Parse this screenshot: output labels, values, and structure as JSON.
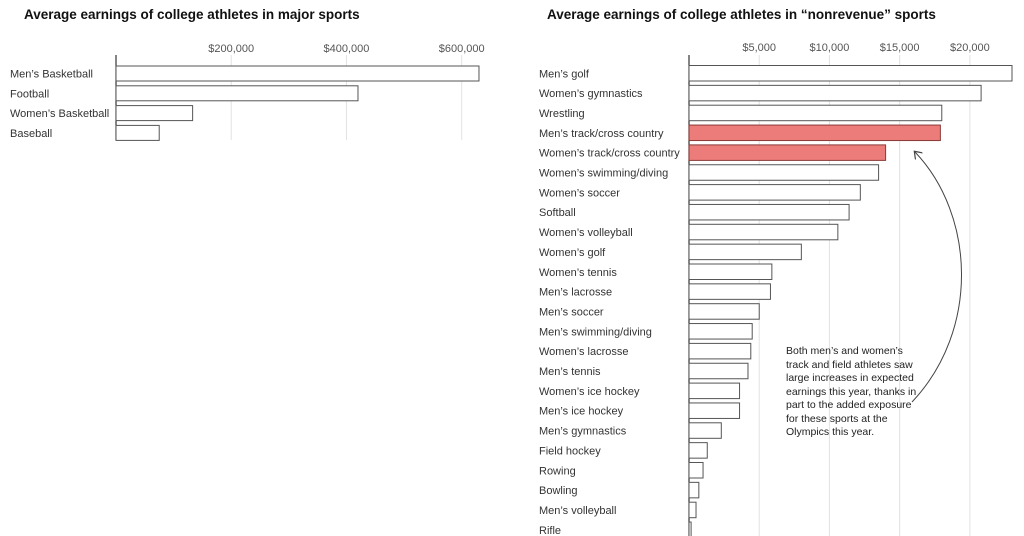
{
  "chart_data": [
    {
      "type": "bar",
      "orientation": "horizontal",
      "title": "Average earnings of college athletes in major sports",
      "categories": [
        "Men’s Basketball",
        "Football",
        "Women’s Basketball",
        "Baseball"
      ],
      "values": [
        630000,
        420000,
        133000,
        75000
      ],
      "xlim": [
        0,
        650000
      ],
      "tick_values": [
        200000,
        400000,
        600000
      ],
      "tick_labels": [
        "$200,000",
        "$400,000",
        "$600,000"
      ],
      "grid": true,
      "colors": {
        "bar_fill": "#ffffff",
        "bar_stroke": "#555555"
      }
    },
    {
      "type": "bar",
      "orientation": "horizontal",
      "title": "Average earnings of college athletes in “nonrevenue” sports",
      "categories": [
        "Men’s golf",
        "Women’s gymnastics",
        "Wrestling",
        "Men’s track/cross country",
        "Women’s track/cross country",
        "Women’s swimming/diving",
        "Women’s soccer",
        "Softball",
        "Women’s volleyball",
        "Women’s golf",
        "Women’s tennis",
        "Men’s lacrosse",
        "Men’s soccer",
        "Men’s swimming/diving",
        "Women’s lacrosse",
        "Men’s tennis",
        "Women’s ice hockey",
        "Men’s ice hockey",
        "Men’s gymnastics",
        "Field hockey",
        "Rowing",
        "Bowling",
        "Men’s volleyball",
        "Rifle"
      ],
      "values": [
        23000,
        20800,
        18000,
        17900,
        14000,
        13500,
        12200,
        11400,
        10600,
        8000,
        5900,
        5800,
        5000,
        4500,
        4400,
        4200,
        3600,
        3600,
        2300,
        1300,
        1000,
        700,
        500,
        150
      ],
      "xlim": [
        0,
        23000
      ],
      "tick_values": [
        5000,
        10000,
        15000,
        20000
      ],
      "tick_labels": [
        "$5,000",
        "$10,000",
        "$15,000",
        "$20,000"
      ],
      "grid": true,
      "highlighted": [
        "Men’s track/cross country",
        "Women’s track/cross country"
      ],
      "colors": {
        "bar_fill": "#ffffff",
        "bar_stroke": "#555555",
        "highlight_fill": "#ec7c7a",
        "highlight_stroke": "#8a3a38"
      },
      "annotation": "Both men’s and women’s track and field athletes saw large increases in expected earnings this year, thanks in part to the added exposure for these sports at the Olympics this year."
    }
  ]
}
